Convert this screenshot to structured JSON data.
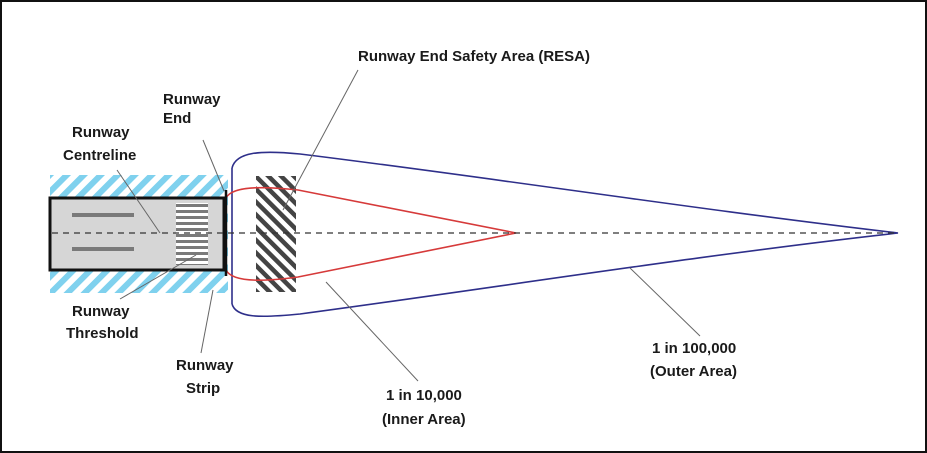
{
  "labels": {
    "resa": "Runway End Safety Area (RESA)",
    "runway_end_1": "Runway",
    "runway_end_2": "End",
    "centreline_1": "Runway",
    "centreline_2": "Centreline",
    "threshold_1": "Runway",
    "threshold_2": "Threshold",
    "strip_1": "Runway",
    "strip_2": "Strip",
    "inner_1": "1 in 10,000",
    "inner_2": "(Inner Area)",
    "outer_1": "1 in 100,000",
    "outer_2": "(Outer Area)"
  },
  "colors": {
    "strip_hatch": "#7fd1ee",
    "runway_fill": "#d6d6d6",
    "resa_hatch": "#444444",
    "inner_contour": "#d63a3a",
    "outer_contour": "#2e2f8a",
    "leader": "#666666"
  }
}
